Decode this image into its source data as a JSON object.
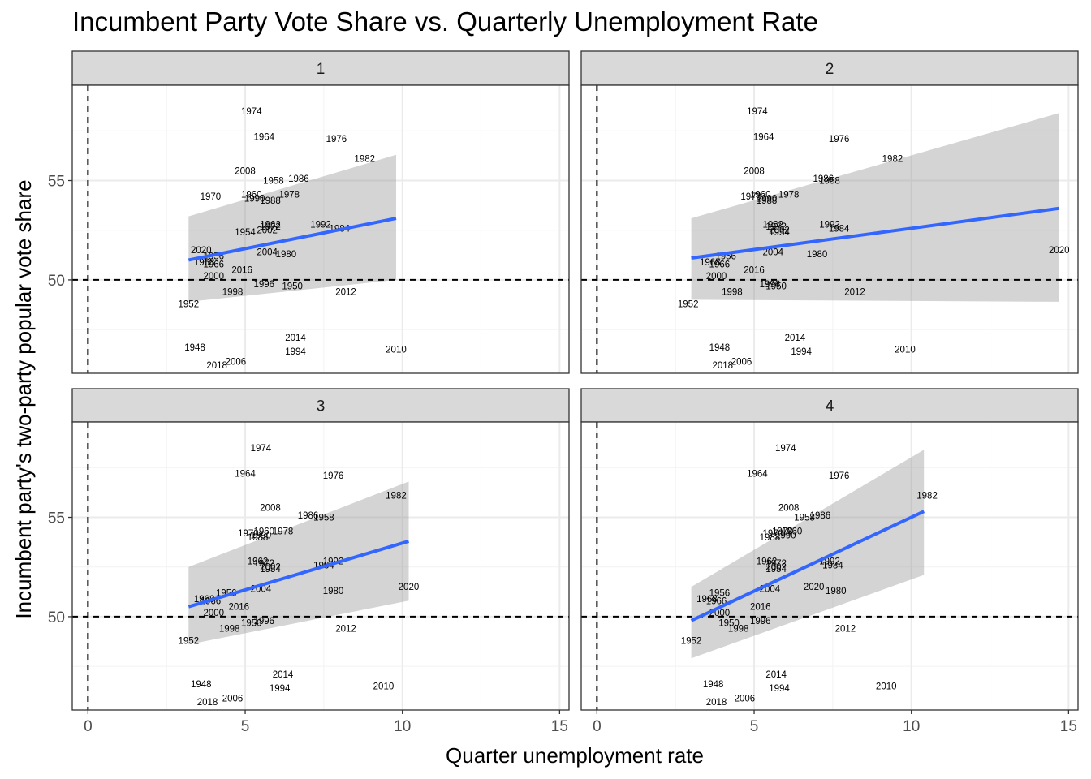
{
  "chart_data": {
    "type": "scatter",
    "title": "Incumbent Party Vote Share vs. Quarterly Unemployment Rate",
    "xlabel": "Quarter unemployment rate",
    "ylabel": "Incumbent party's two-party popular vote share",
    "xlim": [
      -0.5,
      15.3
    ],
    "ylim": [
      45.3,
      59.8
    ],
    "x_ticks": [
      0,
      5,
      10,
      15
    ],
    "y_ticks": [
      50,
      55
    ],
    "reference_lines": {
      "vline_x": 0,
      "hline_y": 50
    },
    "grid": true,
    "facets": [
      {
        "label": "1",
        "fit": {
          "x0": 3.2,
          "y0": 51.0,
          "x1": 9.8,
          "y1": 53.1,
          "band_lo0": 48.9,
          "band_hi0": 53.2,
          "band_lo1": 50.0,
          "band_hi1": 56.3
        },
        "points": [
          {
            "year": "1974",
            "x": 5.2,
            "y": 58.5
          },
          {
            "year": "1964",
            "x": 5.6,
            "y": 57.2
          },
          {
            "year": "1976",
            "x": 7.9,
            "y": 57.1
          },
          {
            "year": "1982",
            "x": 8.8,
            "y": 56.1
          },
          {
            "year": "2008",
            "x": 5.0,
            "y": 55.5
          },
          {
            "year": "1958",
            "x": 5.9,
            "y": 55.0
          },
          {
            "year": "1986",
            "x": 6.7,
            "y": 55.1
          },
          {
            "year": "1970",
            "x": 3.9,
            "y": 54.2
          },
          {
            "year": "1960",
            "x": 5.2,
            "y": 54.3
          },
          {
            "year": "1978",
            "x": 6.4,
            "y": 54.3
          },
          {
            "year": "1990",
            "x": 5.3,
            "y": 54.1
          },
          {
            "year": "1988",
            "x": 5.8,
            "y": 54.0
          },
          {
            "year": "1962",
            "x": 5.8,
            "y": 52.8
          },
          {
            "year": "1972",
            "x": 5.8,
            "y": 52.7
          },
          {
            "year": "1992",
            "x": 7.4,
            "y": 52.8
          },
          {
            "year": "1984",
            "x": 8.0,
            "y": 52.6
          },
          {
            "year": "1954",
            "x": 5.0,
            "y": 52.4
          },
          {
            "year": "2002",
            "x": 5.7,
            "y": 52.5
          },
          {
            "year": "2020",
            "x": 3.6,
            "y": 51.5
          },
          {
            "year": "1956",
            "x": 4.0,
            "y": 51.2
          },
          {
            "year": "2004",
            "x": 5.7,
            "y": 51.4
          },
          {
            "year": "1980",
            "x": 6.3,
            "y": 51.3
          },
          {
            "year": "1968",
            "x": 3.7,
            "y": 50.9
          },
          {
            "year": "1966",
            "x": 4.0,
            "y": 50.8
          },
          {
            "year": "2016",
            "x": 4.9,
            "y": 50.5
          },
          {
            "year": "2000",
            "x": 4.0,
            "y": 50.2
          },
          {
            "year": "1996",
            "x": 5.6,
            "y": 49.8
          },
          {
            "year": "1950",
            "x": 6.5,
            "y": 49.7
          },
          {
            "year": "1998",
            "x": 4.6,
            "y": 49.4
          },
          {
            "year": "2012",
            "x": 8.2,
            "y": 49.4
          },
          {
            "year": "1952",
            "x": 3.2,
            "y": 48.8
          },
          {
            "year": "2014",
            "x": 6.6,
            "y": 47.1
          },
          {
            "year": "1948",
            "x": 3.4,
            "y": 46.6
          },
          {
            "year": "2010",
            "x": 9.8,
            "y": 46.5
          },
          {
            "year": "1994",
            "x": 6.6,
            "y": 46.4
          },
          {
            "year": "2006",
            "x": 4.7,
            "y": 45.9
          },
          {
            "year": "2018",
            "x": 4.1,
            "y": 45.7
          }
        ]
      },
      {
        "label": "2",
        "fit": {
          "x0": 3.0,
          "y0": 51.1,
          "x1": 14.7,
          "y1": 53.6,
          "band_lo0": 49.0,
          "band_hi0": 53.1,
          "band_lo1": 48.9,
          "band_hi1": 58.4
        },
        "points": [
          {
            "year": "1974",
            "x": 5.1,
            "y": 58.5
          },
          {
            "year": "1964",
            "x": 5.3,
            "y": 57.2
          },
          {
            "year": "1976",
            "x": 7.7,
            "y": 57.1
          },
          {
            "year": "1982",
            "x": 9.4,
            "y": 56.1
          },
          {
            "year": "2008",
            "x": 5.0,
            "y": 55.5
          },
          {
            "year": "1986",
            "x": 7.2,
            "y": 55.1
          },
          {
            "year": "1958",
            "x": 7.4,
            "y": 55.0
          },
          {
            "year": "1970",
            "x": 4.9,
            "y": 54.2
          },
          {
            "year": "1960",
            "x": 5.2,
            "y": 54.3
          },
          {
            "year": "1978",
            "x": 6.1,
            "y": 54.3
          },
          {
            "year": "1990",
            "x": 5.4,
            "y": 54.1
          },
          {
            "year": "1988",
            "x": 5.4,
            "y": 54.0
          },
          {
            "year": "1962",
            "x": 5.6,
            "y": 52.8
          },
          {
            "year": "1972",
            "x": 5.7,
            "y": 52.7
          },
          {
            "year": "1992",
            "x": 7.4,
            "y": 52.8
          },
          {
            "year": "1984",
            "x": 7.7,
            "y": 52.6
          },
          {
            "year": "2002",
            "x": 5.8,
            "y": 52.5
          },
          {
            "year": "1954",
            "x": 5.8,
            "y": 52.4
          },
          {
            "year": "2020",
            "x": 14.7,
            "y": 51.5
          },
          {
            "year": "1956",
            "x": 4.1,
            "y": 51.2
          },
          {
            "year": "2004",
            "x": 5.6,
            "y": 51.4
          },
          {
            "year": "1980",
            "x": 7.0,
            "y": 51.3
          },
          {
            "year": "1968",
            "x": 3.6,
            "y": 50.9
          },
          {
            "year": "1966",
            "x": 3.9,
            "y": 50.8
          },
          {
            "year": "2016",
            "x": 5.0,
            "y": 50.5
          },
          {
            "year": "2000",
            "x": 3.8,
            "y": 50.2
          },
          {
            "year": "1996",
            "x": 5.5,
            "y": 49.8
          },
          {
            "year": "1950",
            "x": 5.7,
            "y": 49.7
          },
          {
            "year": "1998",
            "x": 4.3,
            "y": 49.4
          },
          {
            "year": "2012",
            "x": 8.2,
            "y": 49.4
          },
          {
            "year": "1952",
            "x": 2.9,
            "y": 48.8
          },
          {
            "year": "2014",
            "x": 6.3,
            "y": 47.1
          },
          {
            "year": "1948",
            "x": 3.9,
            "y": 46.6
          },
          {
            "year": "2010",
            "x": 9.8,
            "y": 46.5
          },
          {
            "year": "1994",
            "x": 6.5,
            "y": 46.4
          },
          {
            "year": "2006",
            "x": 4.6,
            "y": 45.9
          },
          {
            "year": "2018",
            "x": 4.0,
            "y": 45.7
          }
        ]
      },
      {
        "label": "3",
        "fit": {
          "x0": 3.2,
          "y0": 50.5,
          "x1": 10.2,
          "y1": 53.8,
          "band_lo0": 48.6,
          "band_hi0": 52.5,
          "band_lo1": 50.8,
          "band_hi1": 56.8
        },
        "points": [
          {
            "year": "1974",
            "x": 5.5,
            "y": 58.5
          },
          {
            "year": "1964",
            "x": 5.0,
            "y": 57.2
          },
          {
            "year": "1976",
            "x": 7.8,
            "y": 57.1
          },
          {
            "year": "1982",
            "x": 9.8,
            "y": 56.1
          },
          {
            "year": "2008",
            "x": 5.8,
            "y": 55.5
          },
          {
            "year": "1986",
            "x": 7.0,
            "y": 55.1
          },
          {
            "year": "1958",
            "x": 7.5,
            "y": 55.0
          },
          {
            "year": "1970",
            "x": 5.1,
            "y": 54.2
          },
          {
            "year": "1960",
            "x": 5.6,
            "y": 54.3
          },
          {
            "year": "1978",
            "x": 6.2,
            "y": 54.3
          },
          {
            "year": "1990",
            "x": 5.5,
            "y": 54.1
          },
          {
            "year": "1988",
            "x": 5.4,
            "y": 54.0
          },
          {
            "year": "1962",
            "x": 5.4,
            "y": 52.8
          },
          {
            "year": "1972",
            "x": 5.6,
            "y": 52.7
          },
          {
            "year": "1992",
            "x": 7.8,
            "y": 52.8
          },
          {
            "year": "1984",
            "x": 7.5,
            "y": 52.6
          },
          {
            "year": "2002",
            "x": 5.8,
            "y": 52.5
          },
          {
            "year": "1954",
            "x": 5.8,
            "y": 52.4
          },
          {
            "year": "2020",
            "x": 10.2,
            "y": 51.5
          },
          {
            "year": "1956",
            "x": 4.4,
            "y": 51.2
          },
          {
            "year": "2004",
            "x": 5.5,
            "y": 51.4
          },
          {
            "year": "1980",
            "x": 7.8,
            "y": 51.3
          },
          {
            "year": "1968",
            "x": 3.7,
            "y": 50.9
          },
          {
            "year": "1966",
            "x": 3.9,
            "y": 50.8
          },
          {
            "year": "2016",
            "x": 4.8,
            "y": 50.5
          },
          {
            "year": "2000",
            "x": 4.0,
            "y": 50.2
          },
          {
            "year": "1996",
            "x": 5.6,
            "y": 49.8
          },
          {
            "year": "1950",
            "x": 5.2,
            "y": 49.7
          },
          {
            "year": "1998",
            "x": 4.5,
            "y": 49.4
          },
          {
            "year": "2012",
            "x": 8.2,
            "y": 49.4
          },
          {
            "year": "1952",
            "x": 3.2,
            "y": 48.8
          },
          {
            "year": "2014",
            "x": 6.2,
            "y": 47.1
          },
          {
            "year": "1948",
            "x": 3.6,
            "y": 46.6
          },
          {
            "year": "2010",
            "x": 9.4,
            "y": 46.5
          },
          {
            "year": "1994",
            "x": 6.1,
            "y": 46.4
          },
          {
            "year": "2006",
            "x": 4.6,
            "y": 45.9
          },
          {
            "year": "2018",
            "x": 3.8,
            "y": 45.7
          }
        ]
      },
      {
        "label": "4",
        "fit": {
          "x0": 3.0,
          "y0": 49.8,
          "x1": 10.4,
          "y1": 55.3,
          "band_lo0": 47.9,
          "band_hi0": 51.5,
          "band_lo1": 52.1,
          "band_hi1": 58.4
        },
        "points": [
          {
            "year": "1974",
            "x": 6.0,
            "y": 58.5
          },
          {
            "year": "1964",
            "x": 5.1,
            "y": 57.2
          },
          {
            "year": "1976",
            "x": 7.7,
            "y": 57.1
          },
          {
            "year": "1982",
            "x": 10.5,
            "y": 56.1
          },
          {
            "year": "2008",
            "x": 6.1,
            "y": 55.5
          },
          {
            "year": "1986",
            "x": 7.1,
            "y": 55.1
          },
          {
            "year": "1958",
            "x": 6.6,
            "y": 55.0
          },
          {
            "year": "1970",
            "x": 5.6,
            "y": 54.2
          },
          {
            "year": "1960",
            "x": 6.2,
            "y": 54.3
          },
          {
            "year": "1978",
            "x": 5.9,
            "y": 54.3
          },
          {
            "year": "1990",
            "x": 6.0,
            "y": 54.1
          },
          {
            "year": "1988",
            "x": 5.5,
            "y": 54.0
          },
          {
            "year": "1962",
            "x": 5.4,
            "y": 52.8
          },
          {
            "year": "1972",
            "x": 5.7,
            "y": 52.7
          },
          {
            "year": "1992",
            "x": 7.4,
            "y": 52.8
          },
          {
            "year": "1984",
            "x": 7.5,
            "y": 52.6
          },
          {
            "year": "2002",
            "x": 5.7,
            "y": 52.5
          },
          {
            "year": "1954",
            "x": 5.7,
            "y": 52.4
          },
          {
            "year": "2020",
            "x": 6.9,
            "y": 51.5
          },
          {
            "year": "1956",
            "x": 3.9,
            "y": 51.2
          },
          {
            "year": "2004",
            "x": 5.5,
            "y": 51.4
          },
          {
            "year": "1980",
            "x": 7.6,
            "y": 51.3
          },
          {
            "year": "1968",
            "x": 3.5,
            "y": 50.9
          },
          {
            "year": "1966",
            "x": 3.8,
            "y": 50.8
          },
          {
            "year": "2016",
            "x": 5.2,
            "y": 50.5
          },
          {
            "year": "2000",
            "x": 3.9,
            "y": 50.2
          },
          {
            "year": "1996",
            "x": 5.2,
            "y": 49.8
          },
          {
            "year": "1950",
            "x": 4.2,
            "y": 49.7
          },
          {
            "year": "1998",
            "x": 4.5,
            "y": 49.4
          },
          {
            "year": "2012",
            "x": 7.9,
            "y": 49.4
          },
          {
            "year": "1952",
            "x": 3.0,
            "y": 48.8
          },
          {
            "year": "2014",
            "x": 5.7,
            "y": 47.1
          },
          {
            "year": "1948",
            "x": 3.7,
            "y": 46.6
          },
          {
            "year": "2010",
            "x": 9.2,
            "y": 46.5
          },
          {
            "year": "1994",
            "x": 5.8,
            "y": 46.4
          },
          {
            "year": "2006",
            "x": 4.7,
            "y": 45.9
          },
          {
            "year": "2018",
            "x": 3.8,
            "y": 45.7
          }
        ]
      }
    ],
    "colors": {
      "fit_line": "#3366FF",
      "confidence_band": "#999999",
      "strip_fill": "#D9D9D9",
      "grid": "#EBEBEB",
      "reference_line": "#000000"
    }
  }
}
